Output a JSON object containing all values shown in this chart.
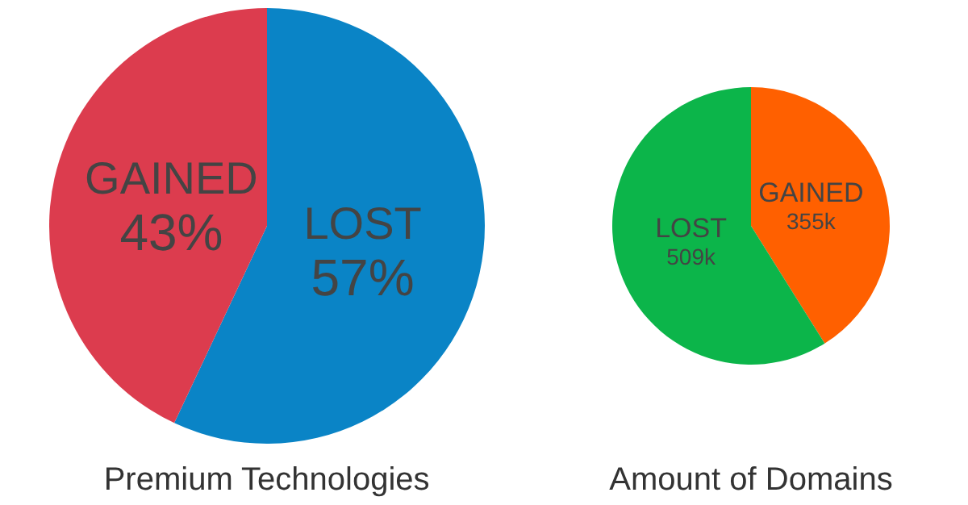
{
  "chart_data": [
    {
      "type": "pie",
      "title": "Premium Technologies",
      "categories": [
        "LOST",
        "GAINED"
      ],
      "values": [
        57,
        43
      ],
      "colors": [
        "#0a84c6",
        "#dc3c4e"
      ],
      "value_labels": [
        "57%",
        "43%"
      ]
    },
    {
      "type": "pie",
      "title": "Amount of Domains",
      "categories": [
        "GAINED",
        "LOST"
      ],
      "values": [
        355,
        509
      ],
      "colors": [
        "#ff6000",
        "#0cb54a"
      ],
      "value_labels": [
        "355k",
        "509k"
      ]
    }
  ]
}
